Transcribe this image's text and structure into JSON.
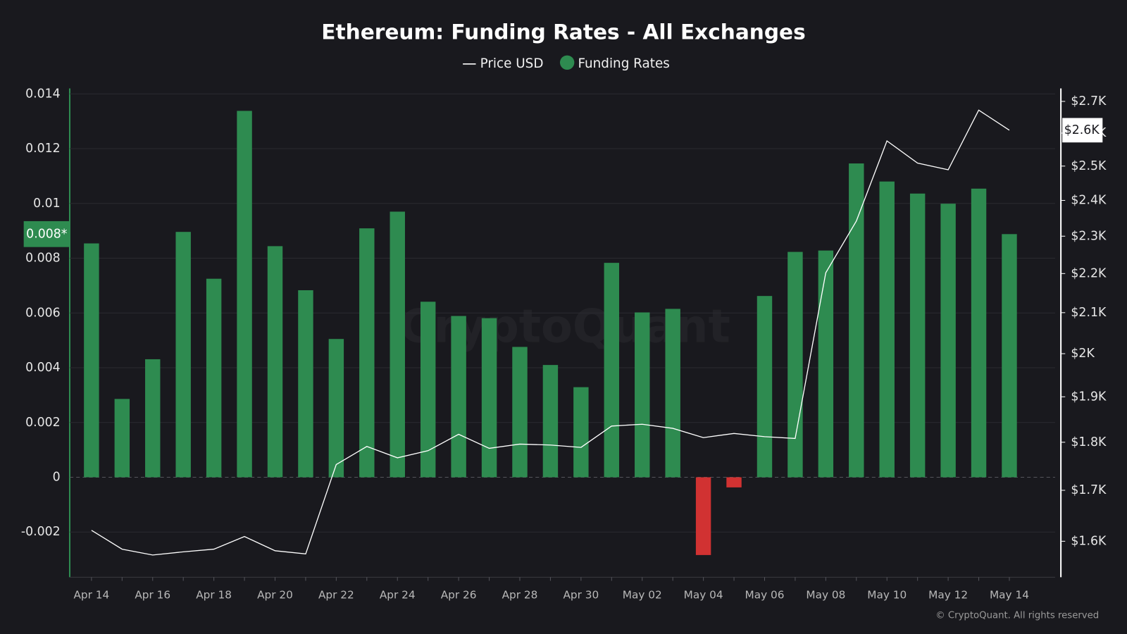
{
  "chart_data": {
    "type": "bar",
    "title": "Ethereum: Funding Rates - All Exchanges",
    "categories": [
      "Apr 14",
      null,
      "Apr 16",
      null,
      "Apr 18",
      null,
      "Apr 20",
      null,
      "Apr 22",
      null,
      "Apr 24",
      null,
      "Apr 26",
      null,
      "Apr 28",
      null,
      "Apr 30",
      null,
      "May 02",
      null,
      "May 04",
      null,
      "May 06",
      null,
      "May 08",
      null,
      "May 10",
      null,
      "May 12",
      null,
      "May 14"
    ],
    "series": [
      {
        "name": "Price USD",
        "type": "line",
        "axis": "y2",
        "color": "#ffffff",
        "values": [
          1621,
          1585,
          1574,
          1580,
          1585,
          1609,
          1582,
          1576,
          1753,
          1791,
          1767,
          1782,
          1817,
          1787,
          1796,
          1794,
          1789,
          1835,
          1839,
          1830,
          1810,
          1819,
          1812,
          1808,
          2202,
          2342,
          2576,
          2509,
          2489,
          2672,
          2609
        ]
      },
      {
        "name": "Funding Rates",
        "type": "bar",
        "color": "#2e8b50",
        "negative_color": "#d13232",
        "values": [
          0.00854,
          0.00286,
          0.00431,
          0.00896,
          0.00725,
          0.01338,
          0.00844,
          0.00683,
          0.00505,
          0.00909,
          0.0097,
          0.00641,
          0.00589,
          0.00581,
          0.00476,
          0.0041,
          0.00329,
          0.00783,
          0.00602,
          0.00615,
          -0.00284,
          -0.00037,
          0.00662,
          0.00823,
          0.00828,
          0.01146,
          0.0108,
          0.01036,
          0.00999,
          0.01054,
          0.00888
        ]
      }
    ],
    "ylim": [
      -0.00365,
      0.0142
    ],
    "yticks": [
      -0.002,
      0,
      0.002,
      0.004,
      0.006,
      0.008,
      0.01,
      0.012,
      0.014
    ],
    "y2lim": [
      1533,
      2742
    ],
    "y2_log": true,
    "y2ticks": [
      {
        "value": 1600,
        "label": "$1.6K"
      },
      {
        "value": 1700,
        "label": "$1.7K"
      },
      {
        "value": 1800,
        "label": "$1.8K"
      },
      {
        "value": 1900,
        "label": "$1.9K"
      },
      {
        "value": 2000,
        "label": "$2K"
      },
      {
        "value": 2100,
        "label": "$2.1K"
      },
      {
        "value": 2200,
        "label": "$2.2K"
      },
      {
        "value": 2300,
        "label": "$2.3K"
      },
      {
        "value": 2400,
        "label": "$2.4K"
      },
      {
        "value": 2500,
        "label": "$2.5K"
      },
      {
        "value": 2600,
        "label": "$2.6K"
      },
      {
        "value": 2700,
        "label": "$2.7K"
      }
    ],
    "grid": true,
    "legend": "top",
    "current_value_label": "0.008*",
    "current_price_label": "$2.6K",
    "watermark": "CryptoQuant",
    "copyright": "© CryptoQuant. All rights reserved"
  }
}
